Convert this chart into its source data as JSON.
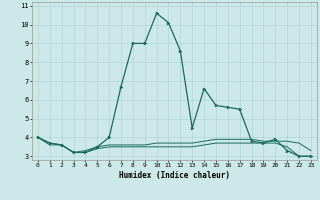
{
  "xlabel": "Humidex (Indice chaleur)",
  "background_color": "#cce8e8",
  "grid_color": "#b0d4d4",
  "line_color": "#1a6b5a",
  "xlim": [
    -0.5,
    23.5
  ],
  "ylim": [
    2.8,
    11.2
  ],
  "yticks": [
    3,
    4,
    5,
    6,
    7,
    8,
    9,
    10,
    11
  ],
  "xticks": [
    0,
    1,
    2,
    3,
    4,
    5,
    6,
    7,
    8,
    9,
    10,
    11,
    12,
    13,
    14,
    15,
    16,
    17,
    18,
    19,
    20,
    21,
    22,
    23
  ],
  "main_x": [
    0,
    1,
    2,
    3,
    4,
    5,
    6,
    7,
    8,
    9,
    10,
    11,
    12,
    13,
    14,
    15,
    16,
    17,
    18,
    19,
    20,
    21,
    22,
    23
  ],
  "main_y": [
    4.0,
    3.7,
    3.6,
    3.2,
    3.2,
    3.5,
    4.0,
    6.7,
    9.0,
    9.0,
    10.6,
    10.1,
    8.6,
    4.5,
    6.6,
    5.7,
    5.6,
    5.5,
    3.8,
    3.7,
    3.9,
    3.3,
    3.0,
    3.0
  ],
  "flat1_x": [
    0,
    1,
    2,
    3,
    4,
    5,
    6,
    7,
    8,
    9,
    10,
    11,
    12,
    13,
    14,
    15,
    16,
    17,
    18,
    19,
    20,
    21,
    22,
    23
  ],
  "flat1_y": [
    4.0,
    3.6,
    3.6,
    3.2,
    3.3,
    3.5,
    3.6,
    3.6,
    3.6,
    3.6,
    3.7,
    3.7,
    3.7,
    3.7,
    3.8,
    3.9,
    3.9,
    3.9,
    3.9,
    3.8,
    3.8,
    3.8,
    3.7,
    3.3
  ],
  "flat2_x": [
    0,
    1,
    2,
    3,
    4,
    5,
    6,
    7,
    8,
    9,
    10,
    11,
    12,
    13,
    14,
    15,
    16,
    17,
    18,
    19,
    20,
    21,
    22,
    23
  ],
  "flat2_y": [
    4.0,
    3.7,
    3.6,
    3.2,
    3.2,
    3.4,
    3.5,
    3.5,
    3.5,
    3.5,
    3.5,
    3.5,
    3.5,
    3.5,
    3.6,
    3.7,
    3.7,
    3.7,
    3.7,
    3.7,
    3.7,
    3.5,
    3.0,
    3.0
  ]
}
